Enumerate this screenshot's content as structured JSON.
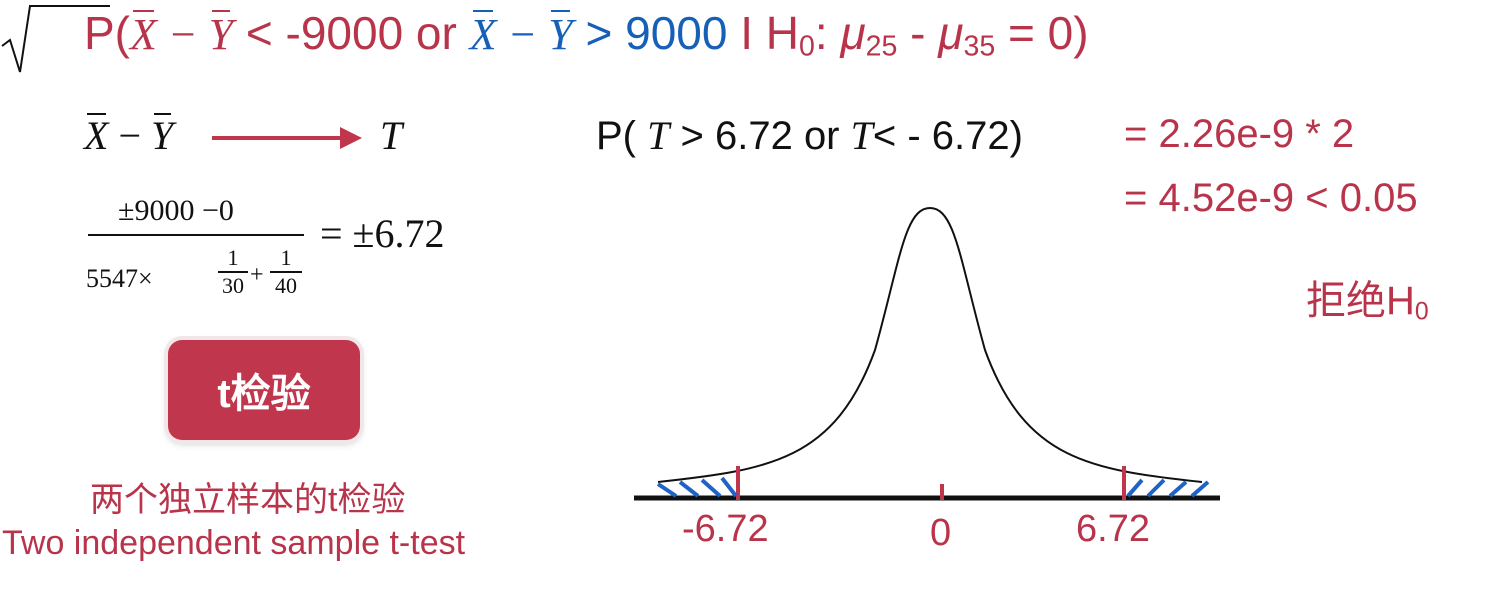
{
  "headline": {
    "p_open": "P(",
    "x": "X",
    "minus": "−",
    "y": "Y",
    "left_cond": "< -9000 or",
    "right_cond": "> 9000",
    "given": "I H",
    "h_sub": "0",
    "colon": ":",
    "mu": "μ",
    "mu1_sub": "25",
    "dash": "-",
    "mu2_sub": "35",
    "tail": "= 0)"
  },
  "mapping": {
    "x": "X",
    "minus": "−",
    "y": "Y",
    "target": "T"
  },
  "formula": {
    "numerator": "±9000 −0",
    "den_prefix": "5547×",
    "frac1_num": "1",
    "frac1_den": "30",
    "plus": "+",
    "frac2_num": "1",
    "frac2_den": "40",
    "result": "= ±6.72"
  },
  "button": {
    "label": "t检验"
  },
  "captions": {
    "chinese": "两个独立样本的t检验",
    "english": "Two independent sample t-test"
  },
  "probability": {
    "p_open": "P(",
    "t1": "T",
    "cond1": "> 6.72 or",
    "t2": "T",
    "cond2": "< - 6.72)",
    "eq1": "= 2.26e-9 * 2",
    "eq2": "= 4.52e-9 < 0.05",
    "reject_text": "拒绝H",
    "reject_sub": "0"
  },
  "axis": {
    "neg": "-6.72",
    "zero": "0",
    "pos": "6.72"
  },
  "colors": {
    "red": "#b8344b",
    "blue": "#1660b8",
    "button": "#c0364c",
    "hatch": "#1f63c8"
  }
}
